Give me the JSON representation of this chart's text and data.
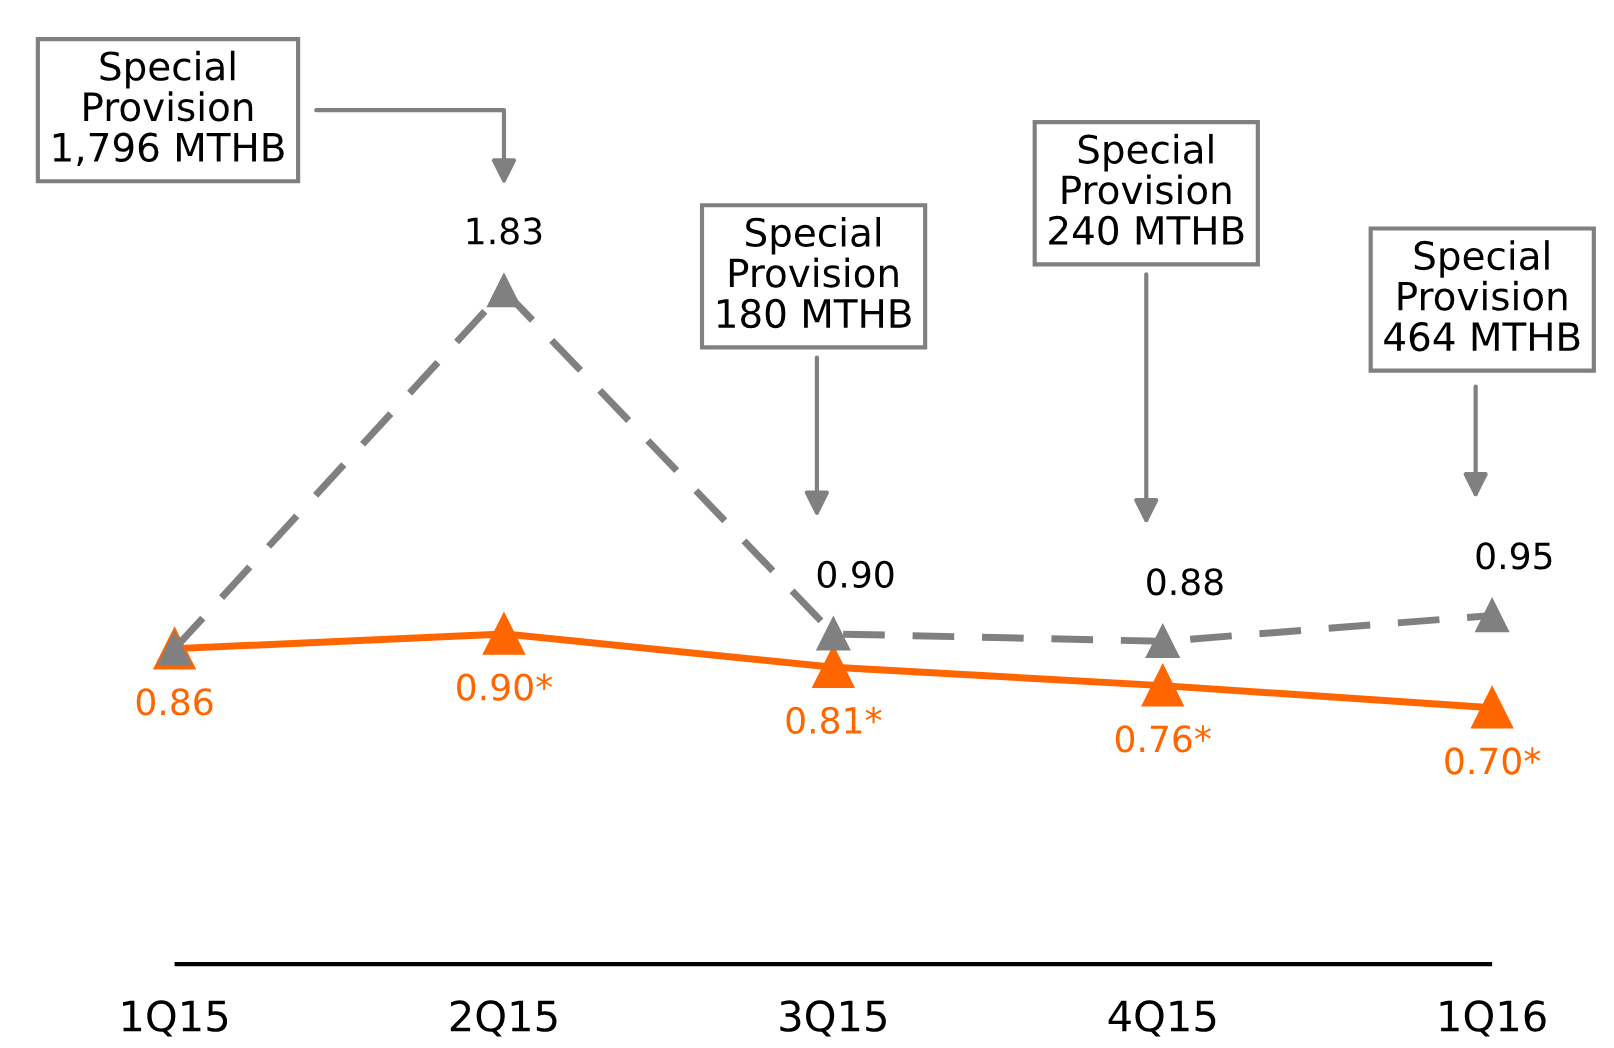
{
  "chart_data": {
    "type": "line",
    "categories": [
      "1Q15",
      "2Q15",
      "3Q15",
      "4Q15",
      "1Q16"
    ],
    "marker": "triangle",
    "grid": false,
    "series": [
      {
        "color": "#808080",
        "line_style": "dashed",
        "values": [
          0.86,
          1.83,
          0.9,
          0.88,
          0.95
        ],
        "value_labels": [
          null,
          "1.83",
          "0.90",
          "0.88",
          "0.95"
        ]
      },
      {
        "color": "#ff6600",
        "line_style": "solid",
        "values": [
          0.86,
          0.9,
          0.81,
          0.76,
          0.7
        ],
        "value_labels": [
          "0.86",
          "0.90*",
          "0.81*",
          "0.76*",
          "0.70*"
        ]
      }
    ],
    "annotations": [
      "Special\nProvision\n1,796 MTHB",
      "Special\nProvision\n180 MTHB",
      "Special\nProvision\n240 MTHB",
      "Special\nProvision\n464 MTHB"
    ]
  }
}
